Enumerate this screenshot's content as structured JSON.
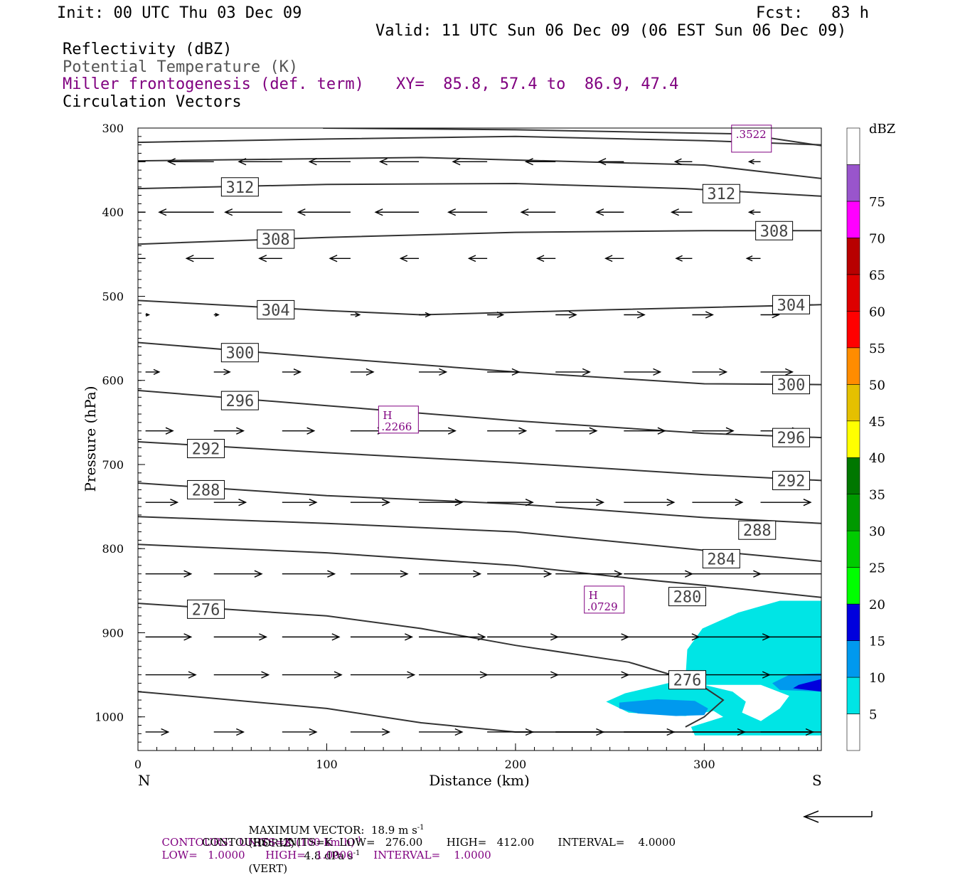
{
  "header": {
    "init": "Init: 00 UTC Thu 03 Dec 09",
    "fcst": "Fcst:   83 h",
    "valid": "Valid: 11 UTC Sun 06 Dec 09 (06 EST Sun 06 Dec 09)",
    "field1": "Reflectivity (dBZ)",
    "field2": "Potential Temperature (K)",
    "field3": "Miller frontogenesis (def. term)",
    "xy": "XY=  85.8, 57.4 to  86.9, 47.4",
    "field4": "Circulation Vectors"
  },
  "colors": {
    "theta": "#333333",
    "fronto": "#800080",
    "refl_5": "#00e5e5",
    "refl_10": "#0099ee",
    "refl_15": "#0000dd"
  },
  "chart_data": {
    "type": "contour",
    "xlabel": "Distance (km)",
    "ylabel": "Pressure (hPa)",
    "xlim": [
      0,
      362
    ],
    "ylim": [
      1040,
      300
    ],
    "x_ticks": [
      "0",
      "100",
      "200",
      "300"
    ],
    "y_ticks": [
      "300",
      "400",
      "500",
      "600",
      "700",
      "800",
      "900",
      "1000"
    ],
    "x_end_left": "N",
    "x_end_right": "S",
    "colorbar": {
      "unit": "dBZ",
      "levels": [
        "5",
        "10",
        "15",
        "20",
        "25",
        "30",
        "35",
        "40",
        "45",
        "50",
        "55",
        "60",
        "65",
        "70",
        "75"
      ],
      "colors": [
        "#ffffff",
        "#00e5e5",
        "#0099ee",
        "#0000dd",
        "#00ff00",
        "#00cc00",
        "#009900",
        "#007700",
        "#ffff00",
        "#e5c000",
        "#ff8c00",
        "#ff0000",
        "#dd0000",
        "#b80000",
        "#ff00ff",
        "#9955cc",
        "#ffffff"
      ]
    },
    "theta_labels": [
      {
        "text": "312",
        "x": 54,
        "y": 370
      },
      {
        "text": "312",
        "x": 309,
        "y": 378
      },
      {
        "text": "308",
        "x": 73,
        "y": 432
      },
      {
        "text": "308",
        "x": 337,
        "y": 422
      },
      {
        "text": "304",
        "x": 73,
        "y": 516
      },
      {
        "text": "304",
        "x": 346,
        "y": 510
      },
      {
        "text": "300",
        "x": 54,
        "y": 567
      },
      {
        "text": "300",
        "x": 346,
        "y": 605
      },
      {
        "text": "296",
        "x": 54,
        "y": 624
      },
      {
        "text": "296",
        "x": 346,
        "y": 668
      },
      {
        "text": "292",
        "x": 36,
        "y": 681
      },
      {
        "text": "292",
        "x": 346,
        "y": 719
      },
      {
        "text": "288",
        "x": 36,
        "y": 730
      },
      {
        "text": "288",
        "x": 328,
        "y": 778
      },
      {
        "text": "284",
        "x": 309,
        "y": 812
      },
      {
        "text": "280",
        "x": 291,
        "y": 857
      },
      {
        "text": "276",
        "x": 36,
        "y": 872
      },
      {
        "text": "276",
        "x": 291,
        "y": 956
      }
    ],
    "fronto_labels": [
      {
        "text": ".3522",
        "x": 325,
        "y": 305
      },
      {
        "text": "H",
        "x": 138,
        "y": 639,
        "sub": ".2266"
      },
      {
        "text": "H",
        "x": 247,
        "y": 853,
        "sub": ".0729"
      }
    ],
    "theta_levels": [
      312,
      308,
      304,
      300,
      296,
      292,
      288,
      284,
      280,
      276
    ]
  },
  "footer": {
    "line1a": "MAXIMUM VECTOR:  18.9 m s",
    "line1b": "(HORIZ)",
    "line1c": "4.8 dPa s",
    "line1d": "(VERT)",
    "line2": "CONTOURS:  UNITS=K (100 km h)",
    "line2b": "LOW=   1.0000      HIGH=   1.0000      INTERVAL=    1.0000",
    "line3": "CONTOURS:  UNITS=K  LOW=   276.00       HIGH=   412.00       INTERVAL=    4.0000",
    "sup": "-1"
  }
}
